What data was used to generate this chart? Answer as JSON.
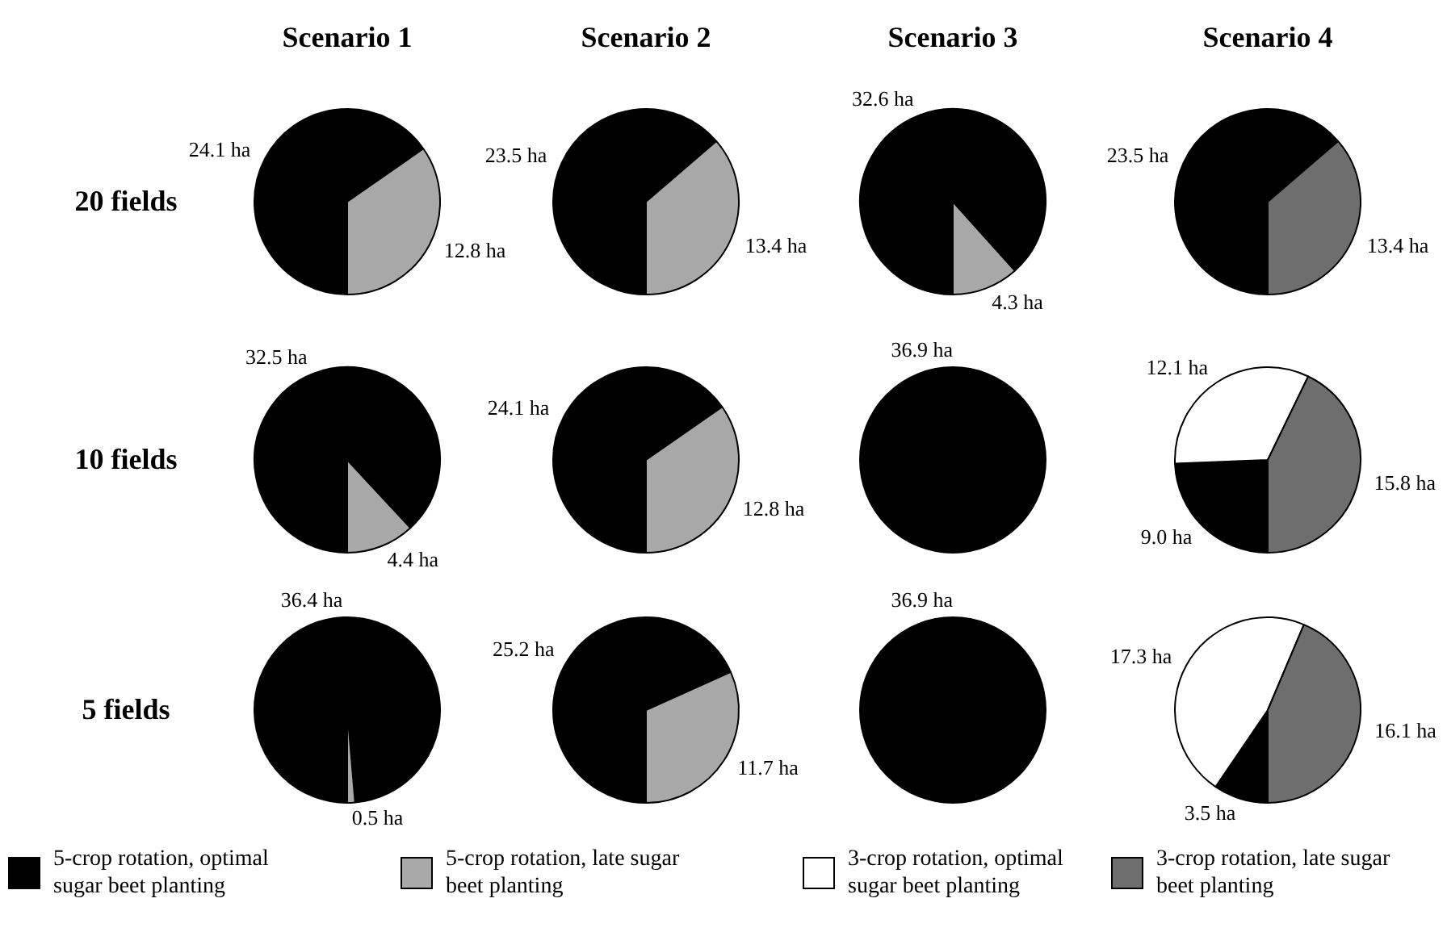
{
  "chart_data": [
    {
      "type": "pie",
      "title": "Scenario 1",
      "ylabel": "20 fields",
      "legend": "bottom",
      "categories": [
        "5-crop rotation, optimal sugar beet planting",
        "3-crop rotation, optimal sugar beet planting",
        "5-crop rotation, late sugar beet planting",
        "3-crop rotation, late sugar beet planting"
      ],
      "colors": [
        "#000000",
        "#ffffff",
        "#a8a8a8",
        "#6e6e6e"
      ],
      "values": [
        24.1,
        null,
        12.8,
        null
      ],
      "value_labels": [
        "24.1 ha",
        null,
        "12.8 ha",
        null
      ]
    },
    {
      "type": "pie",
      "title": "Scenario 2",
      "categories": [
        null,
        null,
        null,
        null
      ],
      "colors": [
        "#000000",
        "#ffffff",
        "#a8a8a8",
        "#6e6e6e"
      ],
      "values": [
        23.5,
        null,
        13.4,
        null
      ],
      "value_labels": [
        "23.5 ha",
        null,
        "13.4 ha",
        null
      ]
    },
    {
      "type": "pie",
      "title": "Scenario 3",
      "categories": [
        null,
        null,
        null,
        null
      ],
      "colors": [
        "#000000",
        "#ffffff",
        "#a8a8a8",
        "#6e6e6e"
      ],
      "values": [
        32.6,
        null,
        4.3,
        null
      ],
      "value_labels": [
        "32.6 ha",
        null,
        "4.3 ha",
        null
      ]
    },
    {
      "type": "pie",
      "title": "Scenario 4",
      "categories": [
        null,
        null,
        null,
        null
      ],
      "colors": [
        "#000000",
        "#ffffff",
        "#a8a8a8",
        "#6e6e6e"
      ],
      "values": [
        23.5,
        null,
        null,
        13.4
      ],
      "value_labels": [
        "23.5 ha",
        null,
        null,
        "13.4 ha"
      ]
    },
    {
      "type": "pie",
      "ylabel": "10 fields",
      "categories": [
        null,
        null,
        null,
        null
      ],
      "colors": [
        "#000000",
        "#ffffff",
        "#a8a8a8",
        "#6e6e6e"
      ],
      "values": [
        32.5,
        null,
        4.4,
        null
      ],
      "value_labels": [
        "32.5 ha",
        null,
        "4.4 ha",
        null
      ]
    },
    {
      "type": "pie",
      "categories": [
        null,
        null,
        null,
        null
      ],
      "colors": [
        "#000000",
        "#ffffff",
        "#a8a8a8",
        "#6e6e6e"
      ],
      "values": [
        24.1,
        null,
        12.8,
        null
      ],
      "value_labels": [
        "24.1 ha",
        null,
        "12.8 ha",
        null
      ]
    },
    {
      "type": "pie",
      "categories": [
        null,
        null,
        null,
        null
      ],
      "colors": [
        "#000000",
        "#ffffff",
        "#a8a8a8",
        "#6e6e6e"
      ],
      "values": [
        36.9,
        null,
        null,
        null
      ],
      "value_labels": [
        "36.9 ha",
        null,
        null,
        null
      ]
    },
    {
      "type": "pie",
      "categories": [
        null,
        null,
        null,
        null
      ],
      "colors": [
        "#000000",
        "#ffffff",
        "#a8a8a8",
        "#6e6e6e"
      ],
      "values": [
        9.0,
        12.1,
        null,
        15.8
      ],
      "value_labels": [
        "9.0 ha",
        "12.1 ha",
        null,
        "15.8 ha"
      ]
    },
    {
      "type": "pie",
      "ylabel": "5 fields",
      "categories": [
        null,
        null,
        null,
        null
      ],
      "colors": [
        "#000000",
        "#ffffff",
        "#a8a8a8",
        "#6e6e6e"
      ],
      "values": [
        36.4,
        null,
        0.5,
        null
      ],
      "value_labels": [
        "36.4 ha",
        null,
        "0.5 ha",
        null
      ]
    },
    {
      "type": "pie",
      "categories": [
        null,
        null,
        null,
        null
      ],
      "colors": [
        "#000000",
        "#ffffff",
        "#a8a8a8",
        "#6e6e6e"
      ],
      "values": [
        25.2,
        null,
        11.7,
        null
      ],
      "value_labels": [
        "25.2 ha",
        null,
        "11.7 ha",
        null
      ]
    },
    {
      "type": "pie",
      "categories": [
        null,
        null,
        null,
        null
      ],
      "colors": [
        "#000000",
        "#ffffff",
        "#a8a8a8",
        "#6e6e6e"
      ],
      "values": [
        36.9,
        null,
        null,
        null
      ],
      "value_labels": [
        "36.9 ha",
        null,
        null,
        null
      ]
    },
    {
      "type": "pie",
      "categories": [
        null,
        null,
        null,
        null
      ],
      "colors": [
        "#000000",
        "#ffffff",
        "#a8a8a8",
        "#6e6e6e"
      ],
      "values": [
        3.5,
        17.3,
        null,
        16.1
      ],
      "value_labels": [
        "3.5 ha",
        "17.3 ha",
        null,
        "16.1 ha"
      ]
    }
  ]
}
